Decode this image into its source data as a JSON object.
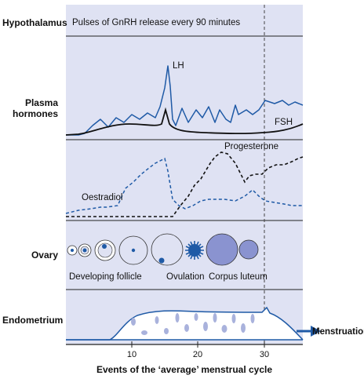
{
  "labels": {
    "hypothalamus": "Hypothalamus",
    "plasma_line1": "Plasma",
    "plasma_line2": "hormones",
    "ovary": "Ovary",
    "endometrium": "Endometrium",
    "pulses_note": "Pulses of GnRH release every 90 minutes",
    "lh": "LH",
    "fsh": "FSH",
    "progesterone": "Progesterone",
    "oestradiol": "Oestradiol",
    "developing_follicle": "Developing follicle",
    "ovulation": "Ovulation",
    "corpus_luteum": "Corpus luteum",
    "menstruation": "Menstruation",
    "x_axis_title": "Events of the ‘average’ menstrual cycle"
  },
  "x_ticks": [
    "10",
    "20",
    "30"
  ],
  "colors": {
    "panel_fill": "#dfe2f3",
    "blue": "#1f5aa6",
    "light_blue": "#a9b2dc",
    "dark": "#111111"
  }
}
